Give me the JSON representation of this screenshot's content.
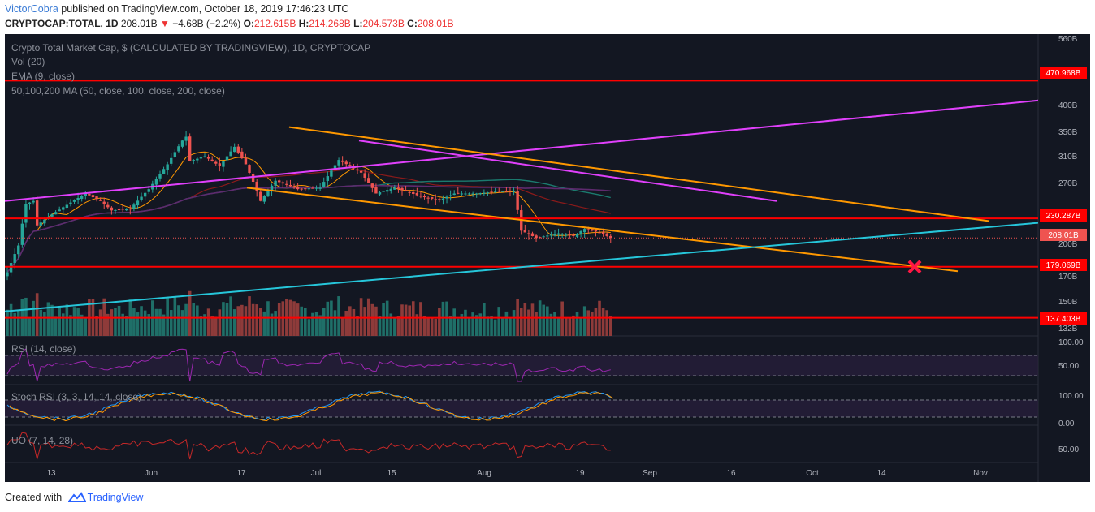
{
  "header": {
    "author": "VictorCobra",
    "published_text": "published on TradingView.com, October 18, 2019 17:46:23 UTC"
  },
  "symbol_bar": {
    "symbol": "CRYPTOCAP:TOTAL, 1D",
    "last": "208.01B",
    "change": "−4.68B (−2.2%)",
    "o_label": "O:",
    "o": "212.615B",
    "h_label": "H:",
    "h": "214.268B",
    "l_label": "L:",
    "l": "204.573B",
    "c_label": "C:",
    "c": "208.01B"
  },
  "footer": {
    "created_with": "Created with",
    "brand": "TradingView"
  },
  "colors": {
    "background": "#131722",
    "bull": "#26a69a",
    "bear": "#ef5350",
    "support_resistance": "#ff0000",
    "trend_magenta": "#e040fb",
    "channel_orange": "#ff9800",
    "uptrend_cyan": "#26c6da",
    "rsi": "#9c27b0"
  },
  "chart_data": {
    "type": "candlestick",
    "title": "Crypto Total Market Cap, $ (CALCULATED BY TRADINGVIEW), 1D, CRYPTOCAP",
    "indicator_labels": [
      "Vol (20)",
      "EMA (9, close)",
      "50,100,200 MA (50, close, 100, close, 200, close)"
    ],
    "y_scale": "log",
    "y_ticks": [
      "560B",
      "400B",
      "350B",
      "310B",
      "270B",
      "200B",
      "170B",
      "150B",
      "132B"
    ],
    "x_ticks": [
      "13",
      "Jun",
      "17",
      "Jul",
      "15",
      "Aug",
      "19",
      "Sep",
      "16",
      "Oct",
      "14",
      "Nov"
    ],
    "price_labels": [
      {
        "value": "470.968B",
        "kind": "resistance"
      },
      {
        "value": "230.287B",
        "kind": "resistance"
      },
      {
        "value": "208.01B",
        "kind": "last"
      },
      {
        "value": "179.069B",
        "kind": "support"
      },
      {
        "value": "137.403B",
        "kind": "support"
      }
    ],
    "close_series": [
      {
        "date": "2019-05-09",
        "close": 174
      },
      {
        "date": "2019-05-12",
        "close": 200
      },
      {
        "date": "2019-05-14",
        "close": 248
      },
      {
        "date": "2019-05-16",
        "close": 252
      },
      {
        "date": "2019-05-17",
        "close": 222
      },
      {
        "date": "2019-05-20",
        "close": 232
      },
      {
        "date": "2019-05-26",
        "close": 250
      },
      {
        "date": "2019-05-30",
        "close": 262
      },
      {
        "date": "2019-06-03",
        "close": 252
      },
      {
        "date": "2019-06-06",
        "close": 240
      },
      {
        "date": "2019-06-11",
        "close": 242
      },
      {
        "date": "2019-06-16",
        "close": 268
      },
      {
        "date": "2019-06-21",
        "close": 305
      },
      {
        "date": "2019-06-25",
        "close": 345
      },
      {
        "date": "2019-06-26",
        "close": 352
      },
      {
        "date": "2019-06-27",
        "close": 310
      },
      {
        "date": "2019-07-01",
        "close": 318
      },
      {
        "date": "2019-07-05",
        "close": 302
      },
      {
        "date": "2019-07-09",
        "close": 334
      },
      {
        "date": "2019-07-12",
        "close": 305
      },
      {
        "date": "2019-07-16",
        "close": 252
      },
      {
        "date": "2019-07-20",
        "close": 280
      },
      {
        "date": "2019-07-26",
        "close": 268
      },
      {
        "date": "2019-08-01",
        "close": 270
      },
      {
        "date": "2019-08-06",
        "close": 312
      },
      {
        "date": "2019-08-12",
        "close": 292
      },
      {
        "date": "2019-08-16",
        "close": 262
      },
      {
        "date": "2019-08-21",
        "close": 270
      },
      {
        "date": "2019-08-28",
        "close": 258
      },
      {
        "date": "2019-09-02",
        "close": 253
      },
      {
        "date": "2019-09-06",
        "close": 262
      },
      {
        "date": "2019-09-12",
        "close": 262
      },
      {
        "date": "2019-09-18",
        "close": 265
      },
      {
        "date": "2019-09-22",
        "close": 265
      },
      {
        "date": "2019-09-24",
        "close": 216
      },
      {
        "date": "2019-09-28",
        "close": 208
      },
      {
        "date": "2019-10-04",
        "close": 213
      },
      {
        "date": "2019-10-08",
        "close": 210
      },
      {
        "date": "2019-10-11",
        "close": 218
      },
      {
        "date": "2019-10-15",
        "close": 214
      },
      {
        "date": "2019-10-18",
        "close": 208
      }
    ],
    "horizontal_levels": [
      470.968,
      230.287,
      179.069,
      137.403
    ],
    "trendlines": [
      {
        "name": "magenta-upper",
        "color": "#e040fb"
      },
      {
        "name": "orange-channel-top",
        "color": "#ff9800"
      },
      {
        "name": "orange-channel-bottom",
        "color": "#ff9800"
      },
      {
        "name": "cyan-uptrend",
        "color": "#26c6da"
      }
    ],
    "annotation": {
      "type": "x-mark",
      "color": "#ff1744",
      "at_value": 179.069
    },
    "subpanes": [
      {
        "label": "RSI (14, close)",
        "ticks": [
          "100.00",
          "50.00"
        ]
      },
      {
        "label": "Stoch RSI (3, 3, 14, 14, close)",
        "ticks": [
          "100.00",
          "0.00"
        ]
      },
      {
        "label": "UO (7, 14, 28)",
        "ticks": [
          "50.00"
        ]
      }
    ]
  }
}
